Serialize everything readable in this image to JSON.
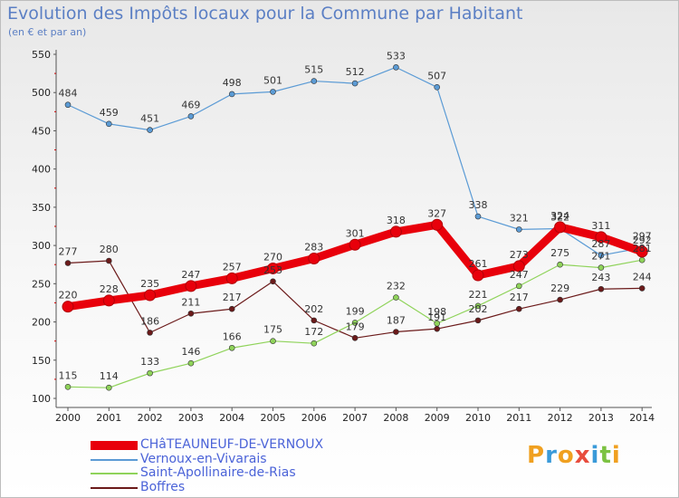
{
  "header": {
    "title": "Evolution des Impôts locaux pour la Commune par Habitant",
    "subtitle": "(en € et par an)"
  },
  "brand": {
    "text": "Proxiti",
    "colors": [
      "#f0a020",
      "#3a9ad9",
      "#f0a020",
      "#e84c3d",
      "#3a9ad9",
      "#7cc242",
      "#f0a020"
    ]
  },
  "chart_data": {
    "type": "line",
    "title": "Evolution des Impôts locaux pour la Commune par Habitant",
    "subtitle": "(en € et par an)",
    "x": [
      "2000",
      "2001",
      "2002",
      "2003",
      "2004",
      "2005",
      "2006",
      "2007",
      "2008",
      "2009",
      "2010",
      "2011",
      "2012",
      "2013",
      "2014"
    ],
    "ylim": [
      100,
      550
    ],
    "yticks": [
      100,
      150,
      200,
      250,
      300,
      350,
      400,
      450,
      500,
      550
    ],
    "grid": false,
    "legend_position": "bottom-left",
    "series": [
      {
        "name": "CHâTEAUNEUF-DE-VERNOUX",
        "color": "#e8000b",
        "values": [
          220,
          228,
          235,
          247,
          257,
          270,
          283,
          301,
          318,
          327,
          261,
          273,
          324,
          311,
          292
        ]
      },
      {
        "name": "Vernoux-en-Vivarais",
        "color": "#5b9bd5",
        "values": [
          484,
          459,
          451,
          469,
          498,
          501,
          515,
          512,
          533,
          507,
          338,
          321,
          322,
          287,
          297
        ]
      },
      {
        "name": "Saint-Apollinaire-de-Rias",
        "color": "#8fd35a",
        "values": [
          115,
          114,
          133,
          146,
          166,
          175,
          172,
          199,
          232,
          198,
          221,
          247,
          275,
          271,
          281
        ]
      },
      {
        "name": "Boffres",
        "color": "#6b1a1a",
        "values": [
          277,
          280,
          186,
          211,
          217,
          253,
          202,
          179,
          187,
          191,
          202,
          217,
          229,
          243,
          244
        ]
      }
    ]
  }
}
